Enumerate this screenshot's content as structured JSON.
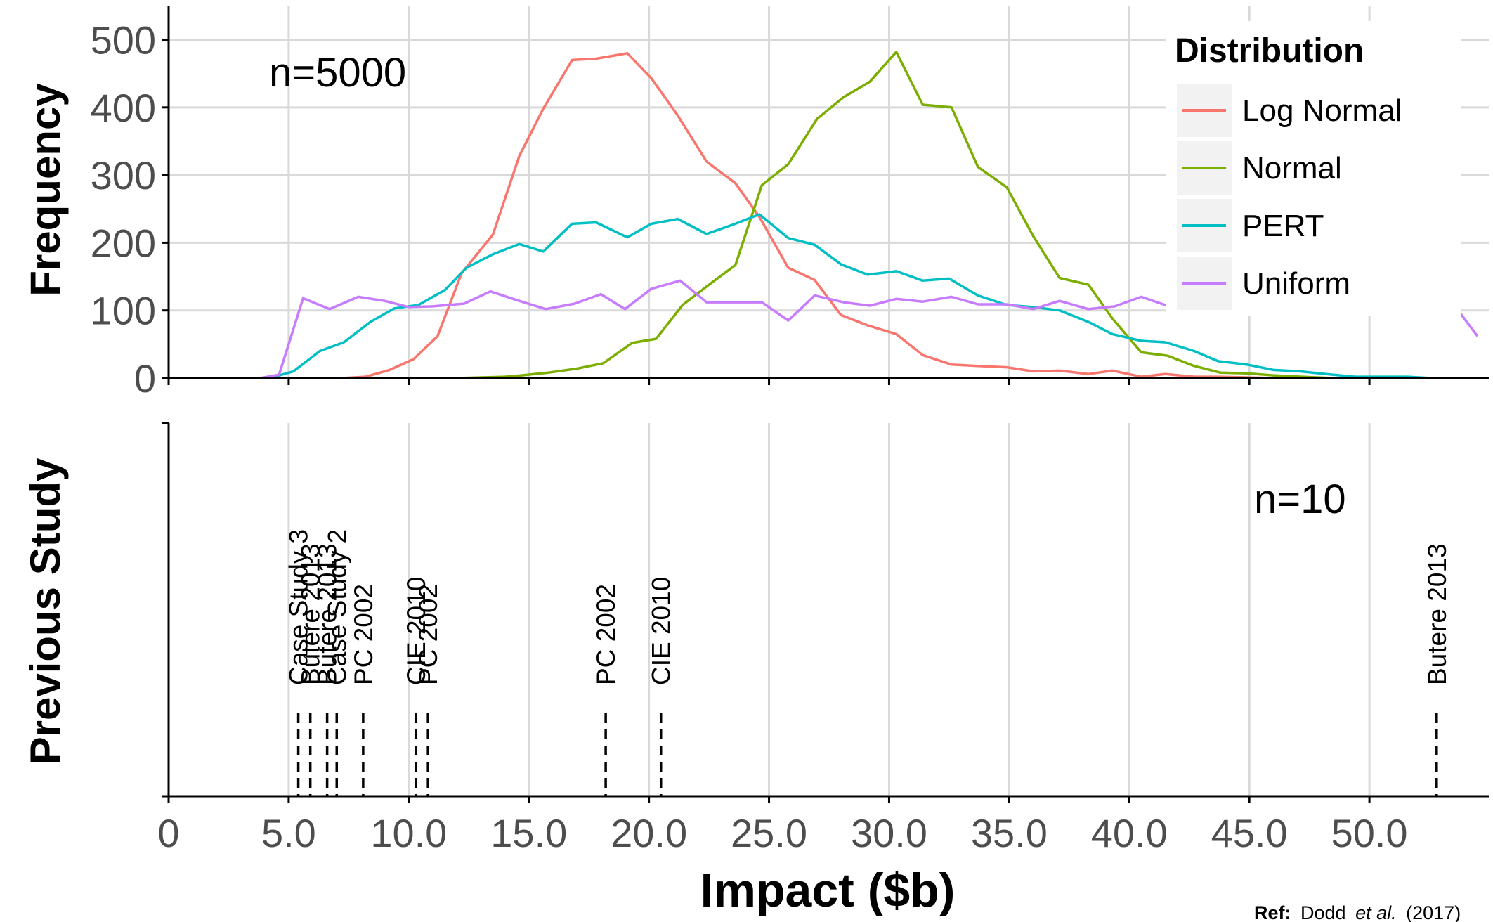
{
  "chart_data": {
    "type": "line",
    "x_axis": {
      "label": "Impact ($b)",
      "range": [
        0,
        55
      ],
      "ticks": [
        0,
        5,
        10,
        15,
        20,
        25,
        30,
        35,
        40,
        45,
        50
      ],
      "tick_labels": [
        "0",
        "5.0",
        "10.0",
        "15.0",
        "20.0",
        "25.0",
        "30.0",
        "35.0",
        "40.0",
        "45.0",
        "50.0"
      ]
    },
    "top_panel": {
      "ylabel": "Frequency",
      "ylim": [
        0,
        540
      ],
      "yticks": [
        0,
        100,
        200,
        300,
        400,
        500
      ],
      "annotation": "n=5000",
      "grid": true,
      "legend": {
        "title": "Distribution",
        "position": "top-right",
        "entries": [
          "Log Normal",
          "Normal",
          "PERT",
          "Uniform"
        ]
      },
      "series": [
        {
          "name": "Log Normal",
          "color": "#F8766D",
          "x": [
            4.2,
            5.2,
            6.2,
            7.2,
            8.2,
            9.2,
            10.2,
            11.2,
            12.2,
            13.5,
            14.6,
            15.6,
            16.8,
            17.8,
            19.1,
            20.1,
            21.2,
            22.4,
            23.6,
            24.6,
            25.8,
            26.9,
            28.0,
            29.1,
            30.3,
            31.4,
            32.6,
            33.7,
            34.9,
            36.0,
            37.1,
            38.3,
            39.3,
            40.5,
            41.5,
            42.7,
            43.7,
            44.9,
            46.0
          ],
          "y": [
            0,
            0,
            0,
            0,
            2,
            12,
            28,
            62,
            155,
            212,
            328,
            398,
            470,
            472,
            480,
            443,
            388,
            320,
            288,
            238,
            163,
            145,
            93,
            78,
            65,
            34,
            20,
            18,
            16,
            10,
            11,
            6,
            11,
            2,
            6,
            2,
            2,
            1,
            0
          ]
        },
        {
          "name": "Normal",
          "color": "#7CAE00",
          "x": [
            10.0,
            12.0,
            14.0,
            14.7,
            15.8,
            17.0,
            18.1,
            19.3,
            20.3,
            21.4,
            22.5,
            23.6,
            24.7,
            25.8,
            27.0,
            28.1,
            29.2,
            30.3,
            31.4,
            32.6,
            33.7,
            34.9,
            36.0,
            37.1,
            38.3,
            39.3,
            40.5,
            41.6,
            42.7,
            43.8,
            44.9,
            46.0,
            47.2,
            48.5
          ],
          "y": [
            0,
            0,
            2,
            4,
            8,
            14,
            22,
            52,
            58,
            108,
            138,
            167,
            285,
            316,
            383,
            415,
            438,
            482,
            404,
            400,
            312,
            282,
            210,
            148,
            138,
            88,
            38,
            33,
            18,
            8,
            7,
            4,
            2,
            0
          ]
        },
        {
          "name": "PERT",
          "color": "#00BFC4",
          "x": [
            4.2,
            5.2,
            6.3,
            7.3,
            8.4,
            9.4,
            10.4,
            11.5,
            12.4,
            13.5,
            14.6,
            15.6,
            16.8,
            17.8,
            19.1,
            20.1,
            21.2,
            22.4,
            23.6,
            24.6,
            25.8,
            26.9,
            28.0,
            29.1,
            30.3,
            31.4,
            32.5,
            33.7,
            34.9,
            36.0,
            37.1,
            38.3,
            39.3,
            40.5,
            41.5,
            42.7,
            43.7,
            44.9,
            46.0,
            47.1,
            48.2,
            49.4,
            50.5,
            51.6,
            52.6
          ],
          "y": [
            0,
            10,
            40,
            53,
            83,
            103,
            108,
            130,
            163,
            183,
            198,
            187,
            228,
            230,
            208,
            228,
            235,
            213,
            228,
            242,
            207,
            197,
            168,
            153,
            158,
            144,
            147,
            122,
            108,
            105,
            100,
            83,
            65,
            55,
            53,
            40,
            25,
            20,
            12,
            10,
            6,
            2,
            2,
            2,
            0
          ]
        },
        {
          "name": "Uniform",
          "color": "#C77CFF",
          "x": [
            3.8,
            4.6,
            5.6,
            6.7,
            7.9,
            9.0,
            10.0,
            11.0,
            12.3,
            13.4,
            14.6,
            15.7,
            16.9,
            18.0,
            19.0,
            20.1,
            21.3,
            22.4,
            23.5,
            24.7,
            25.8,
            26.9,
            28.1,
            29.2,
            30.3,
            31.4,
            32.6,
            33.7,
            34.9,
            36.0,
            37.1,
            38.3,
            39.4,
            40.5,
            41.5,
            50.2,
            51.2,
            52.3,
            53.4,
            54.5
          ],
          "y": [
            0,
            5,
            118,
            102,
            120,
            114,
            105,
            106,
            110,
            128,
            114,
            102,
            110,
            124,
            102,
            132,
            144,
            112,
            112,
            112,
            85,
            122,
            112,
            107,
            117,
            113,
            120,
            109,
            109,
            102,
            114,
            102,
            106,
            120,
            108,
            108,
            108,
            106,
            114,
            62
          ]
        }
      ]
    },
    "bottom_panel": {
      "ylabel": "Previous Study",
      "annotation": "n=10",
      "grid": true,
      "studies": [
        {
          "label": "Case Study 3",
          "x": 5.4
        },
        {
          "label": "Butere 2013",
          "x": 5.9
        },
        {
          "label": "Butere 2013",
          "x": 6.6
        },
        {
          "label": "Case Study 2",
          "x": 7.0
        },
        {
          "label": "PC 2002",
          "x": 8.1
        },
        {
          "label": "CIE 2010",
          "x": 10.3
        },
        {
          "label": "PC 2002",
          "x": 10.8
        },
        {
          "label": "PC 2002",
          "x": 18.2
        },
        {
          "label": "CIE 2010",
          "x": 20.5
        },
        {
          "label": "Butere 2013",
          "x": 52.8
        }
      ]
    },
    "reference": {
      "prefix": "Ref:",
      "authors": "Dodd",
      "etal": "et al.",
      "year": "(2017)"
    }
  },
  "colors": {
    "grid": "#d9d9d9",
    "axis": "#000000",
    "tick_text": "#4d4d4d",
    "legend_key_bg": "#f2f2f2"
  }
}
